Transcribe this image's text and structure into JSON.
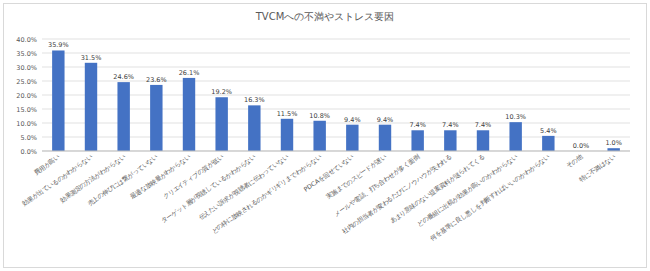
{
  "chart_data": {
    "type": "bar",
    "title": "TVCMへの不満やストレス要因",
    "categories": [
      "費用が高い",
      "効果が出ているのかわからない",
      "効果測定の方法がわからない",
      "売上の伸びには繋がっていない",
      "最適な放映量がわからない",
      "クリエイティブの質が低い",
      "ターゲット層が視聴しているかわからない",
      "伝えたい訴求が視聴者に伝わっていない",
      "どの枠に放映されるのかギリギリまでわからない",
      "PDCAを回せていない",
      "実施までのスピードが遅い",
      "メールや電話、打ち合わせが多く面倒",
      "社内の担当者が変わるたびにノウハウが失われる",
      "あまり意味のない提案資料が送られてくる",
      "どの番組に出稿が効果が高いのかわからない",
      "何を基準に良し悪しを判断すればいいのかわからない",
      "その他",
      "特に不満はない"
    ],
    "values": [
      35.9,
      31.5,
      24.6,
      23.6,
      26.1,
      19.2,
      16.3,
      11.5,
      10.8,
      9.4,
      9.4,
      7.4,
      7.4,
      7.4,
      10.3,
      5.4,
      0.0,
      1.0
    ],
    "value_labels": [
      "35.9%",
      "31.5%",
      "24.6%",
      "23.6%",
      "26.1%",
      "19.2%",
      "16.3%",
      "11.5%",
      "10.8%",
      "9.4%",
      "9.4%",
      "7.4%",
      "7.4%",
      "7.4%",
      "10.3%",
      "5.4%",
      "0.0%",
      "1.0%"
    ],
    "color": "#4472c4",
    "ylim": [
      0,
      40
    ],
    "yticks": [
      {
        "value": 0,
        "label": "0.0%"
      },
      {
        "value": 5,
        "label": "5.0%"
      },
      {
        "value": 10,
        "label": "10.0%"
      },
      {
        "value": 15,
        "label": "15.0%"
      },
      {
        "value": 20,
        "label": "20.0%"
      },
      {
        "value": 25,
        "label": "25.0%"
      },
      {
        "value": 30,
        "label": "30.0%"
      },
      {
        "value": 35,
        "label": "35.0%"
      },
      {
        "value": 40,
        "label": "40.0%"
      }
    ],
    "grid": true,
    "data_labels": true
  }
}
